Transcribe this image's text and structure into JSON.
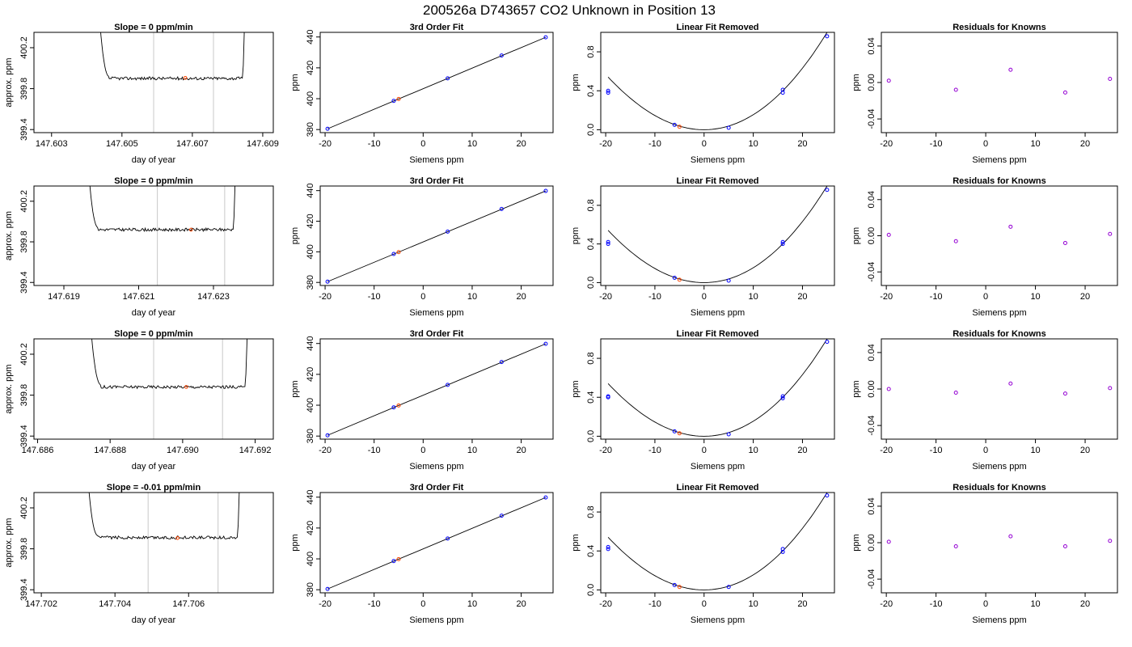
{
  "page_title": "200526a     D743657   CO2 Unknown in Position  13",
  "colors": {
    "trace": "#000000",
    "window": "#c8c8c8",
    "known": "#0000ff",
    "unknown": "#ff4500",
    "residual": "#9400d3"
  },
  "chart_data": [
    {
      "type": "line",
      "row": 0,
      "col": 0,
      "title": "Slope =  0  ppm/min",
      "xlabel": "day of year",
      "ylabel": "approx. ppm",
      "xticks": [
        {
          "v": 147.603,
          "label": "147.603"
        },
        {
          "v": 147.605,
          "label": "147.605"
        },
        {
          "v": 147.607,
          "label": "147.607"
        },
        {
          "v": 147.609,
          "label": "147.609"
        }
      ],
      "yticks": [
        {
          "v": 399.4,
          "label": "399.4"
        },
        {
          "v": 399.8,
          "label": "399.8"
        },
        {
          "v": 400.2,
          "label": "400.2"
        }
      ],
      "xlim": [
        147.6025,
        147.6093
      ],
      "ylim": [
        399.37,
        400.35
      ],
      "base": 399.9,
      "xrange": [
        147.6043,
        147.6085
      ],
      "window": [
        147.6059,
        147.6076
      ],
      "marker": [
        147.6068,
        399.905
      ]
    },
    {
      "type": "scatter",
      "row": 0,
      "col": 1,
      "title": "3rd Order Fit",
      "xlabel": "Siemens ppm",
      "ylabel": "ppm",
      "xticks": [
        {
          "v": -20,
          "label": "-20"
        },
        {
          "v": -10,
          "label": "-10"
        },
        {
          "v": 0,
          "label": "0"
        },
        {
          "v": 10,
          "label": "10"
        },
        {
          "v": 20,
          "label": "20"
        }
      ],
      "yticks": [
        {
          "v": 380,
          "label": "380"
        },
        {
          "v": 400,
          "label": "400"
        },
        {
          "v": 420,
          "label": "420"
        },
        {
          "v": 440,
          "label": "440"
        }
      ],
      "xlim": [
        -21,
        26.5
      ],
      "ylim": [
        378,
        443
      ],
      "line": [
        [
          -19.5,
          380.5
        ],
        [
          25,
          439.8
        ]
      ],
      "known": [
        [
          -19.5,
          380.5
        ],
        [
          -6,
          398.6
        ],
        [
          5,
          413.2
        ],
        [
          16,
          428
        ],
        [
          25,
          439.8
        ]
      ],
      "unknown": [
        [
          -5,
          399.8
        ]
      ]
    },
    {
      "type": "scatter",
      "row": 0,
      "col": 2,
      "title": "Linear Fit Removed",
      "xlabel": "Siemens ppm",
      "ylabel": "ppm",
      "xticks": [
        {
          "v": -20,
          "label": "-20"
        },
        {
          "v": -10,
          "label": "-10"
        },
        {
          "v": 0,
          "label": "0"
        },
        {
          "v": 10,
          "label": "10"
        },
        {
          "v": 20,
          "label": "20"
        }
      ],
      "yticks": [
        {
          "v": 0,
          "label": "0.0"
        },
        {
          "v": 0.4,
          "label": "0.4"
        },
        {
          "v": 0.8,
          "label": "0.8"
        }
      ],
      "xlim": [
        -21,
        26.5
      ],
      "ylim": [
        -0.03,
        1.0
      ],
      "curve_a": 0.0015,
      "curve_b": 0.0001,
      "curve_x": [
        -19.5,
        25
      ],
      "known": [
        [
          -19.5,
          0.38
        ],
        [
          -19.5,
          0.4
        ],
        [
          -6,
          0.05
        ],
        [
          5,
          0.02
        ],
        [
          16,
          0.38
        ],
        [
          16,
          0.41
        ],
        [
          25,
          0.96
        ]
      ],
      "unknown": [
        [
          -5,
          0.03
        ]
      ]
    },
    {
      "type": "scatter",
      "row": 0,
      "col": 3,
      "title": "Residuals for Knowns",
      "xlabel": "Siemens ppm",
      "ylabel": "ppm",
      "xticks": [
        {
          "v": -20,
          "label": "-20"
        },
        {
          "v": -10,
          "label": "-10"
        },
        {
          "v": 0,
          "label": "0"
        },
        {
          "v": 10,
          "label": "10"
        },
        {
          "v": 20,
          "label": "20"
        }
      ],
      "yticks": [
        {
          "v": -0.04,
          "label": "-0.04"
        },
        {
          "v": 0,
          "label": "0.00"
        },
        {
          "v": 0.04,
          "label": "0.04"
        }
      ],
      "xlim": [
        -21,
        26.5
      ],
      "ylim": [
        -0.055,
        0.055
      ],
      "residual": [
        [
          -19.5,
          0.002
        ],
        [
          -6,
          -0.008
        ],
        [
          5,
          0.014
        ],
        [
          16,
          -0.011
        ],
        [
          25,
          0.004
        ]
      ]
    },
    {
      "type": "line",
      "row": 1,
      "col": 0,
      "title": "Slope =  0  ppm/min",
      "xlabel": "day of year",
      "ylabel": "approx. ppm",
      "xticks": [
        {
          "v": 147.619,
          "label": "147.619"
        },
        {
          "v": 147.621,
          "label": "147.621"
        },
        {
          "v": 147.623,
          "label": "147.623"
        }
      ],
      "yticks": [
        {
          "v": 399.4,
          "label": "399.4"
        },
        {
          "v": 399.8,
          "label": "399.8"
        },
        {
          "v": 400.2,
          "label": "400.2"
        }
      ],
      "xlim": [
        147.6182,
        147.6246
      ],
      "ylim": [
        399.37,
        400.35
      ],
      "base": 399.92,
      "xrange": [
        147.6196,
        147.6236
      ],
      "window": [
        147.6215,
        147.6233
      ],
      "marker": [
        147.6224,
        399.92
      ]
    },
    {
      "type": "scatter",
      "row": 1,
      "col": 1,
      "title": "3rd Order Fit",
      "xlabel": "Siemens ppm",
      "ylabel": "ppm",
      "xticks": [
        {
          "v": -20,
          "label": "-20"
        },
        {
          "v": -10,
          "label": "-10"
        },
        {
          "v": 0,
          "label": "0"
        },
        {
          "v": 10,
          "label": "10"
        },
        {
          "v": 20,
          "label": "20"
        }
      ],
      "yticks": [
        {
          "v": 380,
          "label": "380"
        },
        {
          "v": 400,
          "label": "400"
        },
        {
          "v": 420,
          "label": "420"
        },
        {
          "v": 440,
          "label": "440"
        }
      ],
      "xlim": [
        -21,
        26.5
      ],
      "ylim": [
        378,
        443
      ],
      "line": [
        [
          -19.5,
          380.5
        ],
        [
          25,
          439.8
        ]
      ],
      "known": [
        [
          -19.5,
          380.5
        ],
        [
          -6,
          398.6
        ],
        [
          5,
          413.2
        ],
        [
          16,
          428
        ],
        [
          25,
          439.8
        ]
      ],
      "unknown": [
        [
          -5,
          399.8
        ]
      ]
    },
    {
      "type": "scatter",
      "row": 1,
      "col": 2,
      "title": "Linear Fit Removed",
      "xlabel": "Siemens ppm",
      "ylabel": "ppm",
      "xticks": [
        {
          "v": -20,
          "label": "-20"
        },
        {
          "v": -10,
          "label": "-10"
        },
        {
          "v": 0,
          "label": "0"
        },
        {
          "v": 10,
          "label": "10"
        },
        {
          "v": 20,
          "label": "20"
        }
      ],
      "yticks": [
        {
          "v": 0,
          "label": "0.0"
        },
        {
          "v": 0.4,
          "label": "0.4"
        },
        {
          "v": 0.8,
          "label": "0.8"
        }
      ],
      "xlim": [
        -21,
        26.5
      ],
      "ylim": [
        -0.03,
        1.0
      ],
      "curve_a": 0.0015,
      "curve_b": 0.0001,
      "curve_x": [
        -19.5,
        25
      ],
      "known": [
        [
          -19.5,
          0.4
        ],
        [
          -19.5,
          0.42
        ],
        [
          -6,
          0.05
        ],
        [
          5,
          0.02
        ],
        [
          16,
          0.4
        ],
        [
          16,
          0.42
        ],
        [
          25,
          0.96
        ]
      ],
      "unknown": [
        [
          -5,
          0.03
        ]
      ]
    },
    {
      "type": "scatter",
      "row": 1,
      "col": 3,
      "title": "Residuals for Knowns",
      "xlabel": "Siemens ppm",
      "ylabel": "ppm",
      "xticks": [
        {
          "v": -20,
          "label": "-20"
        },
        {
          "v": -10,
          "label": "-10"
        },
        {
          "v": 0,
          "label": "0"
        },
        {
          "v": 10,
          "label": "10"
        },
        {
          "v": 20,
          "label": "20"
        }
      ],
      "yticks": [
        {
          "v": -0.04,
          "label": "-0.04"
        },
        {
          "v": 0,
          "label": "0.00"
        },
        {
          "v": 0.04,
          "label": "0.04"
        }
      ],
      "xlim": [
        -21,
        26.5
      ],
      "ylim": [
        -0.055,
        0.055
      ],
      "residual": [
        [
          -19.5,
          0.001
        ],
        [
          -6,
          -0.006
        ],
        [
          5,
          0.01
        ],
        [
          16,
          -0.008
        ],
        [
          25,
          0.002
        ]
      ]
    },
    {
      "type": "line",
      "row": 2,
      "col": 0,
      "title": "Slope =  0  ppm/min",
      "xlabel": "day of year",
      "ylabel": "approx. ppm",
      "xticks": [
        {
          "v": 147.686,
          "label": "147.686"
        },
        {
          "v": 147.688,
          "label": "147.688"
        },
        {
          "v": 147.69,
          "label": "147.690"
        },
        {
          "v": 147.692,
          "label": "147.692"
        }
      ],
      "yticks": [
        {
          "v": 399.4,
          "label": "399.4"
        },
        {
          "v": 399.8,
          "label": "399.8"
        },
        {
          "v": 400.2,
          "label": "400.2"
        }
      ],
      "xlim": [
        147.6859,
        147.6925
      ],
      "ylim": [
        399.37,
        400.35
      ],
      "base": 399.88,
      "xrange": [
        147.6874,
        147.6918
      ],
      "window": [
        147.6892,
        147.6911
      ],
      "marker": [
        147.6901,
        399.88
      ]
    },
    {
      "type": "scatter",
      "row": 2,
      "col": 1,
      "title": "3rd Order Fit",
      "xlabel": "Siemens ppm",
      "ylabel": "ppm",
      "xticks": [
        {
          "v": -20,
          "label": "-20"
        },
        {
          "v": -10,
          "label": "-10"
        },
        {
          "v": 0,
          "label": "0"
        },
        {
          "v": 10,
          "label": "10"
        },
        {
          "v": 20,
          "label": "20"
        }
      ],
      "yticks": [
        {
          "v": 380,
          "label": "380"
        },
        {
          "v": 400,
          "label": "400"
        },
        {
          "v": 420,
          "label": "420"
        },
        {
          "v": 440,
          "label": "440"
        }
      ],
      "xlim": [
        -21,
        26.5
      ],
      "ylim": [
        378,
        443
      ],
      "line": [
        [
          -19.5,
          380.5
        ],
        [
          25,
          439.8
        ]
      ],
      "known": [
        [
          -19.5,
          380.5
        ],
        [
          -6,
          398.6
        ],
        [
          5,
          413.2
        ],
        [
          16,
          428
        ],
        [
          25,
          439.8
        ]
      ],
      "unknown": [
        [
          -5,
          399.8
        ]
      ]
    },
    {
      "type": "scatter",
      "row": 2,
      "col": 2,
      "title": "Linear Fit Removed",
      "xlabel": "Siemens ppm",
      "ylabel": "ppm",
      "xticks": [
        {
          "v": -20,
          "label": "-20"
        },
        {
          "v": -10,
          "label": "-10"
        },
        {
          "v": 0,
          "label": "0"
        },
        {
          "v": 10,
          "label": "10"
        },
        {
          "v": 20,
          "label": "20"
        }
      ],
      "yticks": [
        {
          "v": 0,
          "label": "0.0"
        },
        {
          "v": 0.4,
          "label": "0.4"
        },
        {
          "v": 0.8,
          "label": "0.8"
        }
      ],
      "xlim": [
        -21,
        26.5
      ],
      "ylim": [
        -0.03,
        1.0
      ],
      "curve_a": 0.0015,
      "curve_b": 0.0001,
      "curve_x": [
        -19.5,
        25
      ],
      "known": [
        [
          -19.5,
          0.4
        ],
        [
          -19.5,
          0.41
        ],
        [
          -6,
          0.05
        ],
        [
          5,
          0.02
        ],
        [
          16,
          0.39
        ],
        [
          16,
          0.41
        ],
        [
          25,
          0.97
        ]
      ],
      "unknown": [
        [
          -5,
          0.03
        ]
      ]
    },
    {
      "type": "scatter",
      "row": 2,
      "col": 3,
      "title": "Residuals for Knowns",
      "xlabel": "Siemens ppm",
      "ylabel": "ppm",
      "xticks": [
        {
          "v": -20,
          "label": "-20"
        },
        {
          "v": -10,
          "label": "-10"
        },
        {
          "v": 0,
          "label": "0"
        },
        {
          "v": 10,
          "label": "10"
        },
        {
          "v": 20,
          "label": "20"
        }
      ],
      "yticks": [
        {
          "v": -0.04,
          "label": "-0.04"
        },
        {
          "v": 0,
          "label": "0.00"
        },
        {
          "v": 0.04,
          "label": "0.04"
        }
      ],
      "xlim": [
        -21,
        26.5
      ],
      "ylim": [
        -0.055,
        0.055
      ],
      "residual": [
        [
          -19.5,
          0.0
        ],
        [
          -6,
          -0.004
        ],
        [
          5,
          0.006
        ],
        [
          16,
          -0.005
        ],
        [
          25,
          0.001
        ]
      ]
    },
    {
      "type": "line",
      "row": 3,
      "col": 0,
      "title": "Slope =  -0.01  ppm/min",
      "xlabel": "day of year",
      "ylabel": "approx. ppm",
      "xticks": [
        {
          "v": 147.702,
          "label": "147.702"
        },
        {
          "v": 147.704,
          "label": "147.704"
        },
        {
          "v": 147.706,
          "label": "147.706"
        }
      ],
      "yticks": [
        {
          "v": 399.4,
          "label": "399.4"
        },
        {
          "v": 399.8,
          "label": "399.8"
        },
        {
          "v": 400.2,
          "label": "400.2"
        }
      ],
      "xlim": [
        147.7018,
        147.7083
      ],
      "ylim": [
        399.37,
        400.35
      ],
      "base": 399.91,
      "xrange": [
        147.7032,
        147.7074
      ],
      "window": [
        147.7049,
        147.7068
      ],
      "marker": [
        147.7057,
        399.905
      ]
    },
    {
      "type": "scatter",
      "row": 3,
      "col": 1,
      "title": "3rd Order Fit",
      "xlabel": "Siemens ppm",
      "ylabel": "ppm",
      "xticks": [
        {
          "v": -20,
          "label": "-20"
        },
        {
          "v": -10,
          "label": "-10"
        },
        {
          "v": 0,
          "label": "0"
        },
        {
          "v": 10,
          "label": "10"
        },
        {
          "v": 20,
          "label": "20"
        }
      ],
      "yticks": [
        {
          "v": 380,
          "label": "380"
        },
        {
          "v": 400,
          "label": "400"
        },
        {
          "v": 420,
          "label": "420"
        },
        {
          "v": 440,
          "label": "440"
        }
      ],
      "xlim": [
        -21,
        26.5
      ],
      "ylim": [
        378,
        443
      ],
      "line": [
        [
          -19.5,
          380.5
        ],
        [
          25,
          439.8
        ]
      ],
      "known": [
        [
          -19.5,
          380.5
        ],
        [
          -6,
          398.6
        ],
        [
          5,
          413.2
        ],
        [
          16,
          428
        ],
        [
          25,
          439.8
        ]
      ],
      "unknown": [
        [
          -5,
          399.8
        ]
      ]
    },
    {
      "type": "scatter",
      "row": 3,
      "col": 2,
      "title": "Linear Fit Removed",
      "xlabel": "Siemens ppm",
      "ylabel": "ppm",
      "xticks": [
        {
          "v": -20,
          "label": "-20"
        },
        {
          "v": -10,
          "label": "-10"
        },
        {
          "v": 0,
          "label": "0"
        },
        {
          "v": 10,
          "label": "10"
        },
        {
          "v": 20,
          "label": "20"
        }
      ],
      "yticks": [
        {
          "v": 0,
          "label": "0.0"
        },
        {
          "v": 0.4,
          "label": "0.4"
        },
        {
          "v": 0.8,
          "label": "0.8"
        }
      ],
      "xlim": [
        -21,
        26.5
      ],
      "ylim": [
        -0.03,
        1.0
      ],
      "curve_a": 0.0015,
      "curve_b": 0.0001,
      "curve_x": [
        -19.5,
        25
      ],
      "known": [
        [
          -19.5,
          0.42
        ],
        [
          -19.5,
          0.44
        ],
        [
          -6,
          0.05
        ],
        [
          5,
          0.03
        ],
        [
          16,
          0.39
        ],
        [
          16,
          0.42
        ],
        [
          25,
          0.97
        ]
      ],
      "unknown": [
        [
          -5,
          0.03
        ]
      ]
    },
    {
      "type": "scatter",
      "row": 3,
      "col": 3,
      "title": "Residuals for Knowns",
      "xlabel": "Siemens ppm",
      "ylabel": "ppm",
      "xticks": [
        {
          "v": -20,
          "label": "-20"
        },
        {
          "v": -10,
          "label": "-10"
        },
        {
          "v": 0,
          "label": "0"
        },
        {
          "v": 10,
          "label": "10"
        },
        {
          "v": 20,
          "label": "20"
        }
      ],
      "yticks": [
        {
          "v": -0.04,
          "label": "-0.04"
        },
        {
          "v": 0,
          "label": "0.00"
        },
        {
          "v": 0.04,
          "label": "0.04"
        }
      ],
      "xlim": [
        -21,
        26.5
      ],
      "ylim": [
        -0.055,
        0.055
      ],
      "residual": [
        [
          -19.5,
          0.001
        ],
        [
          -6,
          -0.004
        ],
        [
          5,
          0.007
        ],
        [
          16,
          -0.004
        ],
        [
          25,
          0.002
        ]
      ]
    }
  ]
}
